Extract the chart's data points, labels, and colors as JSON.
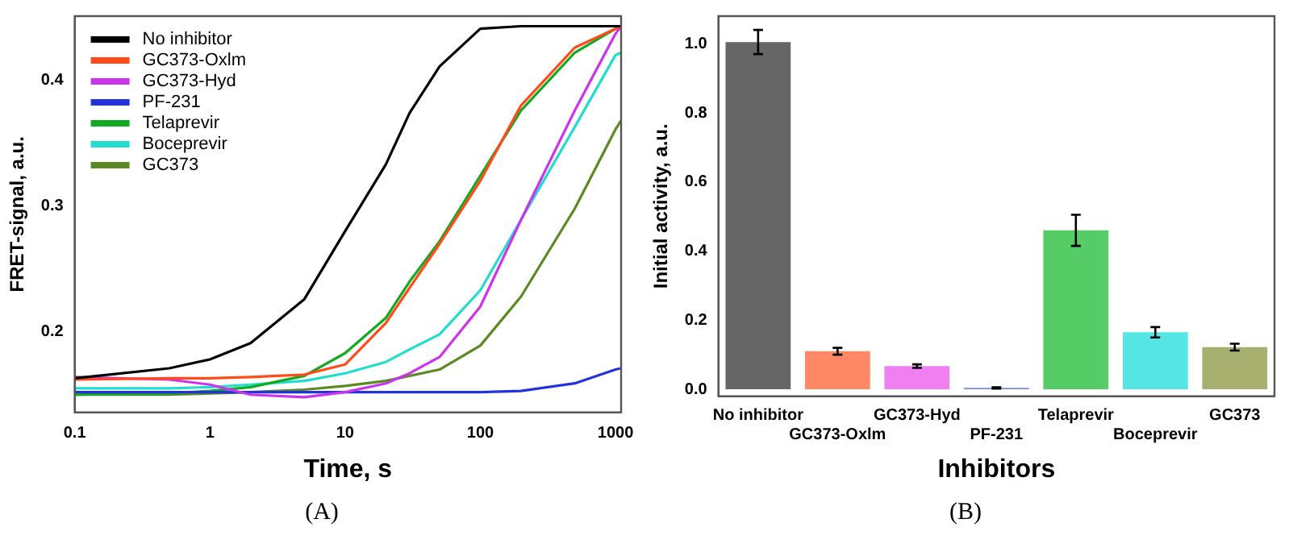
{
  "chart_data": [
    {
      "type": "line",
      "xlabel": "Time, s",
      "ylabel": "FRET-signal, a.u.",
      "log": "x",
      "legend": "top left",
      "marker": "none",
      "annotations": [
        "(A)"
      ],
      "x": [
        0.1,
        0.5,
        1,
        2,
        5,
        10,
        20,
        30,
        50,
        100,
        200,
        500,
        1000,
        1100
      ],
      "xlim": [
        0.1,
        1100
      ],
      "xticks": [
        0.1,
        1,
        10,
        100,
        1000
      ],
      "ylim": [
        0.136,
        0.451
      ],
      "yticks": [
        0.2,
        0.3,
        0.4
      ],
      "series": [
        {
          "name": "No inhibitor",
          "color": "#000000",
          "values": [
            0.163,
            0.171,
            0.178,
            0.191,
            0.226,
            0.28,
            0.333,
            0.374,
            0.411,
            0.441,
            0.443,
            0.443,
            0.443,
            0.443
          ]
        },
        {
          "name": "GC373-Oxlm",
          "color": "#ff4a1a",
          "values": [
            0.162,
            0.163,
            0.163,
            0.164,
            0.166,
            0.174,
            0.207,
            0.235,
            0.27,
            0.32,
            0.38,
            0.426,
            0.441,
            0.443
          ]
        },
        {
          "name": "GC373-Hyd",
          "color": "#cc33ee",
          "values": [
            0.164,
            0.162,
            0.158,
            0.15,
            0.148,
            0.152,
            0.159,
            0.167,
            0.18,
            0.22,
            0.289,
            0.376,
            0.437,
            0.443
          ]
        },
        {
          "name": "PF-231",
          "color": "#2233dd",
          "values": [
            0.152,
            0.152,
            0.152,
            0.152,
            0.152,
            0.152,
            0.152,
            0.152,
            0.152,
            0.152,
            0.153,
            0.159,
            0.17,
            0.171
          ]
        },
        {
          "name": "Telaprevir",
          "color": "#11aa22",
          "values": [
            0.15,
            0.151,
            0.153,
            0.156,
            0.165,
            0.183,
            0.211,
            0.24,
            0.272,
            0.324,
            0.376,
            0.422,
            0.441,
            0.443
          ]
        },
        {
          "name": "Boceprevir",
          "color": "#22ddcc",
          "values": [
            0.155,
            0.155,
            0.156,
            0.158,
            0.161,
            0.167,
            0.176,
            0.186,
            0.198,
            0.233,
            0.289,
            0.363,
            0.42,
            0.422
          ]
        },
        {
          "name": "GC373",
          "color": "#5a8a22",
          "values": [
            0.15,
            0.15,
            0.151,
            0.152,
            0.154,
            0.157,
            0.161,
            0.165,
            0.17,
            0.189,
            0.228,
            0.298,
            0.361,
            0.368
          ]
        }
      ]
    },
    {
      "type": "bar",
      "xlabel": "Inhibitors",
      "ylabel": "Initial activity, a.u.",
      "annotations": [
        "(B)"
      ],
      "categories": [
        "No inhibitor",
        "GC373-Oxlm",
        "GC373-Hyd",
        "PF-231",
        "Telaprevir",
        "Boceprevir",
        "GC373"
      ],
      "values": [
        1.005,
        0.11,
        0.067,
        0.004,
        0.46,
        0.165,
        0.122
      ],
      "errors": [
        0.035,
        0.01,
        0.005,
        0.002,
        0.045,
        0.015,
        0.01
      ],
      "colors": [
        "#666666",
        "#ff8866",
        "#f080f0",
        "#7788ee",
        "#55cc66",
        "#55e5e5",
        "#a8b070"
      ],
      "ylim": [
        -0.02,
        1.08
      ],
      "yticks": [
        {
          "value": 0,
          "label": "0.0"
        },
        0.2,
        0.4,
        0.6,
        0.8,
        {
          "value": 1,
          "label": "1.0"
        }
      ]
    }
  ]
}
